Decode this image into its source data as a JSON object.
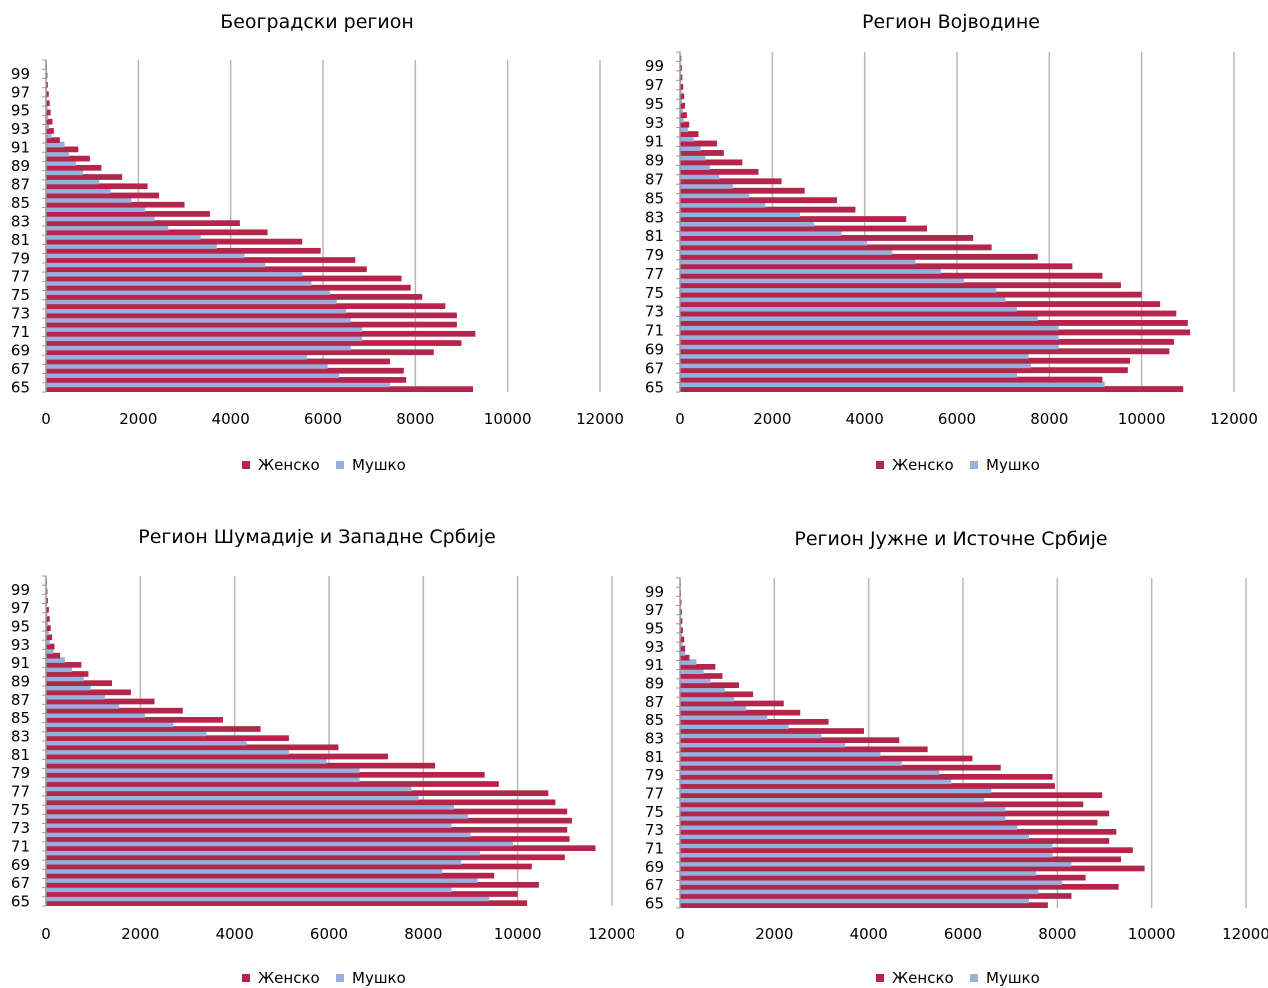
{
  "colors": {
    "female": "#b5244a",
    "male": "#94b2dc",
    "grid": "#b8b8b8",
    "axis": "#9a9a9a"
  },
  "chart_data": [
    {
      "type": "bar",
      "orientation": "horizontal",
      "title": "Београдски регион",
      "xlim": [
        0,
        12000
      ],
      "x_ticks": [
        "0",
        "2000",
        "4000",
        "6000",
        "8000",
        "10000",
        "12000"
      ],
      "y_tick_labels": [
        "65",
        "67",
        "69",
        "71",
        "73",
        "75",
        "77",
        "79",
        "81",
        "83",
        "85",
        "87",
        "89",
        "91",
        "93",
        "95",
        "97",
        "99"
      ],
      "categories": [
        65,
        66,
        67,
        68,
        69,
        70,
        71,
        72,
        73,
        74,
        75,
        76,
        77,
        78,
        79,
        80,
        81,
        82,
        83,
        84,
        85,
        86,
        87,
        88,
        89,
        90,
        91,
        92,
        93,
        94,
        95,
        96,
        97,
        98,
        99,
        100
      ],
      "series": [
        {
          "name": "Женско",
          "values": [
            9250,
            7800,
            7750,
            7450,
            8400,
            9000,
            9300,
            8900,
            8900,
            8650,
            8150,
            7900,
            7700,
            6950,
            6700,
            5950,
            5550,
            4800,
            4200,
            3550,
            3000,
            2450,
            2200,
            1650,
            1200,
            950,
            700,
            300,
            170,
            140,
            100,
            80,
            60,
            40,
            30,
            20
          ]
        },
        {
          "name": "Мушко",
          "values": [
            7450,
            6350,
            6100,
            5650,
            6600,
            6850,
            6850,
            6600,
            6500,
            6300,
            6150,
            5750,
            5550,
            4750,
            4300,
            3700,
            3350,
            2650,
            2350,
            2150,
            1850,
            1400,
            1150,
            800,
            650,
            500,
            400,
            120,
            70,
            50,
            35,
            25,
            15,
            10,
            8,
            5
          ]
        }
      ],
      "legend": [
        "Женско",
        "Мушко"
      ],
      "legend_position": "bottom"
    },
    {
      "type": "bar",
      "orientation": "horizontal",
      "title": "Регион Војводине",
      "xlim": [
        0,
        12000
      ],
      "x_ticks": [
        "0",
        "2000",
        "4000",
        "6000",
        "8000",
        "10000",
        "12000"
      ],
      "y_tick_labels": [
        "65",
        "67",
        "69",
        "71",
        "73",
        "75",
        "77",
        "79",
        "81",
        "83",
        "85",
        "87",
        "89",
        "91",
        "93",
        "95",
        "97",
        "99"
      ],
      "categories": [
        65,
        66,
        67,
        68,
        69,
        70,
        71,
        72,
        73,
        74,
        75,
        76,
        77,
        78,
        79,
        80,
        81,
        82,
        83,
        84,
        85,
        86,
        87,
        88,
        89,
        90,
        91,
        92,
        93,
        94,
        95,
        96,
        97,
        98,
        99,
        100
      ],
      "series": [
        {
          "name": "Женско",
          "values": [
            10900,
            9150,
            9700,
            9750,
            10600,
            10700,
            11050,
            11000,
            10750,
            10400,
            10000,
            9550,
            9150,
            8500,
            7750,
            6750,
            6350,
            5350,
            4900,
            3800,
            3400,
            2700,
            2200,
            1700,
            1350,
            950,
            800,
            400,
            200,
            150,
            110,
            90,
            70,
            50,
            40,
            30
          ]
        },
        {
          "name": "Мушко",
          "values": [
            9200,
            7300,
            7600,
            7550,
            8200,
            8200,
            8200,
            7750,
            7300,
            7050,
            6850,
            6150,
            5650,
            5100,
            4600,
            4050,
            3500,
            2900,
            2600,
            1850,
            1500,
            1150,
            850,
            650,
            550,
            450,
            300,
            170,
            80,
            60,
            45,
            35,
            25,
            15,
            10,
            8
          ]
        }
      ],
      "legend": [
        "Женско",
        "Мушко"
      ],
      "legend_position": "bottom"
    },
    {
      "type": "bar",
      "orientation": "horizontal",
      "title": "Регион Шумадије и Западне Србије",
      "xlim": [
        0,
        12000
      ],
      "x_ticks": [
        "0",
        "2000",
        "4000",
        "6000",
        "8000",
        "10000",
        "12000"
      ],
      "y_tick_labels": [
        "65",
        "67",
        "69",
        "71",
        "73",
        "75",
        "77",
        "79",
        "81",
        "83",
        "85",
        "87",
        "89",
        "91",
        "93",
        "95",
        "97",
        "99"
      ],
      "categories": [
        65,
        66,
        67,
        68,
        69,
        70,
        71,
        72,
        73,
        74,
        75,
        76,
        77,
        78,
        79,
        80,
        81,
        82,
        83,
        84,
        85,
        86,
        87,
        88,
        89,
        90,
        91,
        92,
        93,
        94,
        95,
        96,
        97,
        98,
        99,
        100
      ],
      "series": [
        {
          "name": "Женско",
          "values": [
            10200,
            10000,
            10450,
            9500,
            10300,
            11000,
            11650,
            11100,
            11050,
            11150,
            11050,
            10800,
            10650,
            9600,
            9300,
            8250,
            7250,
            6200,
            5150,
            4550,
            3750,
            2900,
            2300,
            1800,
            1400,
            900,
            750,
            300,
            180,
            130,
            100,
            80,
            60,
            40,
            30,
            20
          ]
        },
        {
          "name": "Мушко",
          "values": [
            9400,
            8600,
            9150,
            8400,
            8800,
            9200,
            9900,
            9000,
            8600,
            8950,
            8650,
            7900,
            7750,
            6650,
            6650,
            5950,
            5150,
            4250,
            3400,
            2700,
            2100,
            1550,
            1250,
            950,
            800,
            550,
            400,
            160,
            80,
            60,
            40,
            30,
            20,
            15,
            10,
            5
          ]
        }
      ],
      "legend": [
        "Женско",
        "Мушко"
      ],
      "legend_position": "bottom"
    },
    {
      "type": "bar",
      "orientation": "horizontal",
      "title": "Регион Јужне и Источне Србије",
      "xlim": [
        0,
        12000
      ],
      "x_ticks": [
        "0",
        "2000",
        "4000",
        "6000",
        "8000",
        "10000",
        "12000"
      ],
      "y_tick_labels": [
        "65",
        "67",
        "69",
        "71",
        "73",
        "75",
        "77",
        "79",
        "81",
        "83",
        "85",
        "87",
        "89",
        "91",
        "93",
        "95",
        "97",
        "99"
      ],
      "categories": [
        65,
        66,
        67,
        68,
        69,
        70,
        71,
        72,
        73,
        74,
        75,
        76,
        77,
        78,
        79,
        80,
        81,
        82,
        83,
        84,
        85,
        86,
        87,
        88,
        89,
        90,
        91,
        92,
        93,
        94,
        95,
        96,
        97,
        98,
        99,
        100
      ],
      "series": [
        {
          "name": "Женско",
          "values": [
            7800,
            8300,
            9300,
            8600,
            9850,
            9350,
            9600,
            9100,
            9250,
            8850,
            9100,
            8550,
            8950,
            7950,
            7900,
            6800,
            6200,
            5250,
            4650,
            3900,
            3150,
            2550,
            2200,
            1550,
            1250,
            900,
            750,
            200,
            110,
            90,
            60,
            50,
            40,
            30,
            20,
            15
          ]
        },
        {
          "name": "Мушко",
          "values": [
            7400,
            7600,
            8100,
            7550,
            8300,
            7900,
            7900,
            7400,
            7150,
            6900,
            6900,
            6450,
            6600,
            5750,
            5500,
            4700,
            4250,
            3500,
            3000,
            2300,
            1850,
            1400,
            1150,
            950,
            650,
            500,
            350,
            110,
            60,
            45,
            30,
            25,
            15,
            10,
            8,
            5
          ]
        }
      ],
      "legend": [
        "Женско",
        "Мушко"
      ],
      "legend_position": "bottom"
    }
  ]
}
